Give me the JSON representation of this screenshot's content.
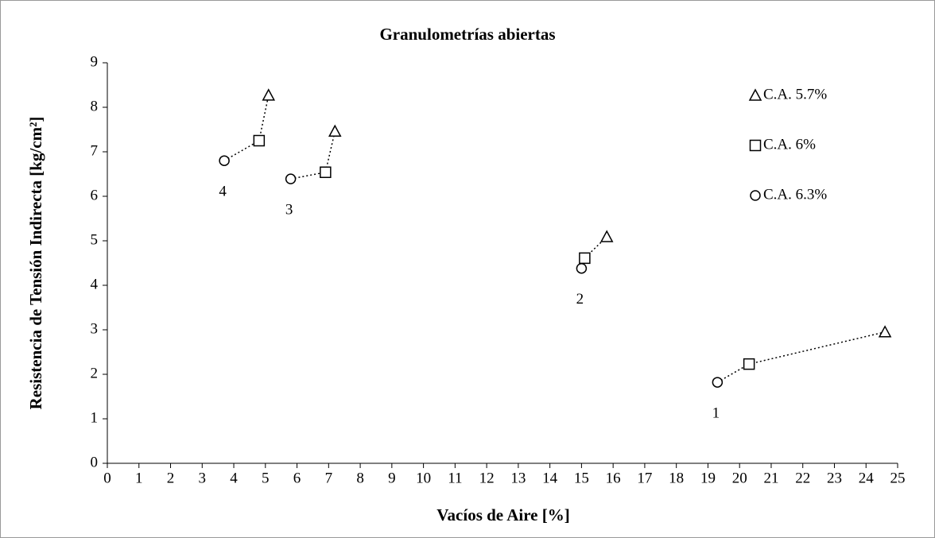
{
  "chart_data": {
    "type": "scatter",
    "title": "Granulometrías abiertas",
    "x_label": "Vacíos de Aire [%]",
    "y_label": "Resistencia de Tensión Indirecta [kg/cm²]",
    "xlim": [
      0,
      25
    ],
    "xticks": [
      0,
      1,
      2,
      3,
      4,
      5,
      6,
      7,
      8,
      9,
      10,
      11,
      12,
      13,
      14,
      15,
      16,
      17,
      18,
      19,
      20,
      21,
      22,
      23,
      24,
      25
    ],
    "ylim": [
      0,
      9
    ],
    "yticks": [
      0,
      1,
      2,
      3,
      4,
      5,
      6,
      7,
      8,
      9
    ],
    "group_labels": [
      "1",
      "2",
      "3",
      "4"
    ],
    "legend": "upper right",
    "series": [
      {
        "name": "C.A. 5.7%",
        "marker": "triangle",
        "color": "#000000",
        "x": [
          24.6,
          15.8,
          7.2,
          5.1
        ],
        "y": [
          2.95,
          5.09,
          7.46,
          8.27
        ]
      },
      {
        "name": "C.A. 6%",
        "marker": "square",
        "color": "#000000",
        "x": [
          20.3,
          15.1,
          6.9,
          4.8
        ],
        "y": [
          2.23,
          4.61,
          6.54,
          7.25
        ]
      },
      {
        "name": "C.A. 6.3%",
        "marker": "circle",
        "color": "#000000",
        "x": [
          19.3,
          15.0,
          5.8,
          3.7
        ],
        "y": [
          1.82,
          4.38,
          6.39,
          6.8
        ]
      }
    ]
  }
}
